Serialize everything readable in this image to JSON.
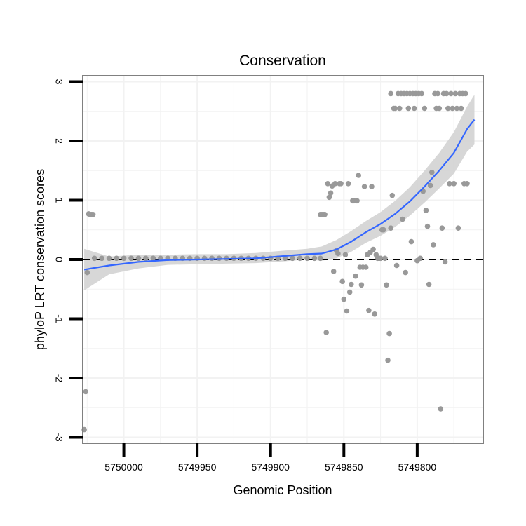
{
  "chart_data": {
    "type": "scatter",
    "title": "Conservation",
    "xlabel": "Genomic Position",
    "ylabel": "phyloP LRT conservation scores",
    "x_reversed": true,
    "xlim": [
      5750028,
      5749755
    ],
    "ylim": [
      -3.1,
      3.1
    ],
    "x_ticks": [
      5750000,
      5749950,
      5749900,
      5749850,
      5749800
    ],
    "x_tick_labels": [
      "5750000",
      "5749950",
      "5749900",
      "5749850",
      "5749800"
    ],
    "y_ticks": [
      -3,
      -2,
      -1,
      0,
      1,
      2,
      3
    ],
    "y_tick_labels": [
      "-3",
      "-2",
      "-1",
      "0",
      "1",
      "2",
      "3"
    ],
    "reference_line": {
      "y": 0,
      "style": "dashed",
      "color": "#000000"
    },
    "grid": true,
    "colors": {
      "points": "#999999",
      "smooth_line": "#3366FF",
      "confidence_band": "#D3D3D3",
      "grid": "#F2F2F2",
      "panel_border": "#808080",
      "axis_ticks": "#000000"
    },
    "series": [
      {
        "name": "phyloP scores",
        "points": [
          {
            "x": 5750027,
            "y": -2.87
          },
          {
            "x": 5750026,
            "y": -2.23
          },
          {
            "x": 5750025,
            "y": -0.22
          },
          {
            "x": 5750024,
            "y": 0.77
          },
          {
            "x": 5750023,
            "y": 0.76
          },
          {
            "x": 5750022,
            "y": 0.76
          },
          {
            "x": 5750021,
            "y": 0.76
          },
          {
            "x": 5750020,
            "y": 0.02
          },
          {
            "x": 5750015,
            "y": 0.02
          },
          {
            "x": 5750010,
            "y": 0.02
          },
          {
            "x": 5750005,
            "y": 0.02
          },
          {
            "x": 5750000,
            "y": 0.02
          },
          {
            "x": 5749995,
            "y": 0.02
          },
          {
            "x": 5749990,
            "y": 0.02
          },
          {
            "x": 5749985,
            "y": 0.02
          },
          {
            "x": 5749980,
            "y": 0.02
          },
          {
            "x": 5749975,
            "y": 0.02
          },
          {
            "x": 5749970,
            "y": 0.02
          },
          {
            "x": 5749965,
            "y": 0.02
          },
          {
            "x": 5749960,
            "y": 0.02
          },
          {
            "x": 5749955,
            "y": 0.02
          },
          {
            "x": 5749950,
            "y": 0.02
          },
          {
            "x": 5749945,
            "y": 0.02
          },
          {
            "x": 5749940,
            "y": 0.02
          },
          {
            "x": 5749935,
            "y": 0.02
          },
          {
            "x": 5749930,
            "y": 0.02
          },
          {
            "x": 5749925,
            "y": 0.02
          },
          {
            "x": 5749920,
            "y": 0.02
          },
          {
            "x": 5749915,
            "y": 0.02
          },
          {
            "x": 5749910,
            "y": 0.02
          },
          {
            "x": 5749905,
            "y": 0.02
          },
          {
            "x": 5749900,
            "y": 0.02
          },
          {
            "x": 5749895,
            "y": 0.02
          },
          {
            "x": 5749890,
            "y": 0.02
          },
          {
            "x": 5749885,
            "y": 0.02
          },
          {
            "x": 5749880,
            "y": 0.02
          },
          {
            "x": 5749875,
            "y": 0.02
          },
          {
            "x": 5749870,
            "y": 0.02
          },
          {
            "x": 5749866,
            "y": 0.02
          },
          {
            "x": 5749866,
            "y": 0.76
          },
          {
            "x": 5749865,
            "y": 0.76
          },
          {
            "x": 5749864,
            "y": 0.76
          },
          {
            "x": 5749863,
            "y": 0.76
          },
          {
            "x": 5749862,
            "y": -1.23
          },
          {
            "x": 5749861,
            "y": 1.28
          },
          {
            "x": 5749860,
            "y": 1.05
          },
          {
            "x": 5749859,
            "y": 1.12
          },
          {
            "x": 5749858,
            "y": 1.24
          },
          {
            "x": 5749857,
            "y": -0.2
          },
          {
            "x": 5749856,
            "y": 1.28
          },
          {
            "x": 5749855,
            "y": 0.15
          },
          {
            "x": 5749854,
            "y": 0.1
          },
          {
            "x": 5749853,
            "y": 1.28
          },
          {
            "x": 5749852,
            "y": 1.28
          },
          {
            "x": 5749851,
            "y": -0.37
          },
          {
            "x": 5749850,
            "y": -0.67
          },
          {
            "x": 5749849,
            "y": 0.08
          },
          {
            "x": 5749848,
            "y": -0.87
          },
          {
            "x": 5749847,
            "y": 1.28
          },
          {
            "x": 5749846,
            "y": -0.55
          },
          {
            "x": 5749845,
            "y": -0.42
          },
          {
            "x": 5749844,
            "y": 0.99
          },
          {
            "x": 5749843,
            "y": 0.99
          },
          {
            "x": 5749842,
            "y": -0.28
          },
          {
            "x": 5749841,
            "y": 0.99
          },
          {
            "x": 5749840,
            "y": 1.42
          },
          {
            "x": 5749839,
            "y": -0.13
          },
          {
            "x": 5749838,
            "y": -0.43
          },
          {
            "x": 5749837,
            "y": -0.13
          },
          {
            "x": 5749836,
            "y": 1.23
          },
          {
            "x": 5749835,
            "y": -0.13
          },
          {
            "x": 5749834,
            "y": 0.08
          },
          {
            "x": 5749833,
            "y": -0.86
          },
          {
            "x": 5749832,
            "y": 0.12
          },
          {
            "x": 5749831,
            "y": 1.23
          },
          {
            "x": 5749830,
            "y": 0.17
          },
          {
            "x": 5749829,
            "y": -0.92
          },
          {
            "x": 5749828,
            "y": 0.08
          },
          {
            "x": 5749827,
            "y": 0.02
          },
          {
            "x": 5749826,
            "y": 0.02
          },
          {
            "x": 5749825,
            "y": 0.02
          },
          {
            "x": 5749824,
            "y": 0.5
          },
          {
            "x": 5749823,
            "y": 0.5
          },
          {
            "x": 5749822,
            "y": 0.02
          },
          {
            "x": 5749821,
            "y": -0.43
          },
          {
            "x": 5749820,
            "y": -1.7
          },
          {
            "x": 5749819,
            "y": -1.25
          },
          {
            "x": 5749818,
            "y": 0.53
          },
          {
            "x": 5749818,
            "y": 2.8
          },
          {
            "x": 5749817,
            "y": 1.08
          },
          {
            "x": 5749816,
            "y": 2.55
          },
          {
            "x": 5749815,
            "y": 2.55
          },
          {
            "x": 5749814,
            "y": -0.1
          },
          {
            "x": 5749813,
            "y": 2.8
          },
          {
            "x": 5749812,
            "y": 2.55
          },
          {
            "x": 5749811,
            "y": 2.8
          },
          {
            "x": 5749810,
            "y": 0.68
          },
          {
            "x": 5749809,
            "y": 2.8
          },
          {
            "x": 5749808,
            "y": -0.22
          },
          {
            "x": 5749807,
            "y": 2.8
          },
          {
            "x": 5749806,
            "y": 2.55
          },
          {
            "x": 5749805,
            "y": 2.8
          },
          {
            "x": 5749804,
            "y": 0.3
          },
          {
            "x": 5749803,
            "y": 2.8
          },
          {
            "x": 5749802,
            "y": 2.55
          },
          {
            "x": 5749801,
            "y": 2.8
          },
          {
            "x": 5749800,
            "y": -0.02
          },
          {
            "x": 5749799,
            "y": 2.8
          },
          {
            "x": 5749798,
            "y": 0.02
          },
          {
            "x": 5749797,
            "y": 2.8
          },
          {
            "x": 5749796,
            "y": 1.15
          },
          {
            "x": 5749795,
            "y": 2.55
          },
          {
            "x": 5749794,
            "y": 0.83
          },
          {
            "x": 5749793,
            "y": 0.56
          },
          {
            "x": 5749792,
            "y": -0.42
          },
          {
            "x": 5749791,
            "y": 1.25
          },
          {
            "x": 5749790,
            "y": 1.47
          },
          {
            "x": 5749789,
            "y": 0.25
          },
          {
            "x": 5749788,
            "y": 2.8
          },
          {
            "x": 5749787,
            "y": 2.55
          },
          {
            "x": 5749786,
            "y": 2.8
          },
          {
            "x": 5749785,
            "y": 2.55
          },
          {
            "x": 5749784,
            "y": -2.52
          },
          {
            "x": 5749783,
            "y": 0.53
          },
          {
            "x": 5749782,
            "y": 2.8
          },
          {
            "x": 5749781,
            "y": -0.04
          },
          {
            "x": 5749780,
            "y": 2.8
          },
          {
            "x": 5749779,
            "y": 2.55
          },
          {
            "x": 5749778,
            "y": 1.28
          },
          {
            "x": 5749777,
            "y": 2.8
          },
          {
            "x": 5749776,
            "y": 2.55
          },
          {
            "x": 5749775,
            "y": 1.28
          },
          {
            "x": 5749774,
            "y": 2.8
          },
          {
            "x": 5749773,
            "y": 2.55
          },
          {
            "x": 5749772,
            "y": 0.53
          },
          {
            "x": 5749771,
            "y": 2.8
          },
          {
            "x": 5749770,
            "y": 2.55
          },
          {
            "x": 5749769,
            "y": 2.8
          },
          {
            "x": 5749768,
            "y": 1.28
          },
          {
            "x": 5749767,
            "y": 2.8
          },
          {
            "x": 5749766,
            "y": 1.28
          }
        ]
      },
      {
        "name": "loess fit",
        "line": [
          {
            "x": 5750027,
            "y": -0.17
          },
          {
            "x": 5750010,
            "y": -0.1
          },
          {
            "x": 5749990,
            "y": -0.04
          },
          {
            "x": 5749970,
            "y": -0.01
          },
          {
            "x": 5749950,
            "y": 0.0
          },
          {
            "x": 5749930,
            "y": 0.01
          },
          {
            "x": 5749910,
            "y": 0.02
          },
          {
            "x": 5749890,
            "y": 0.06
          },
          {
            "x": 5749875,
            "y": 0.09
          },
          {
            "x": 5749865,
            "y": 0.1
          },
          {
            "x": 5749855,
            "y": 0.17
          },
          {
            "x": 5749845,
            "y": 0.3
          },
          {
            "x": 5749835,
            "y": 0.46
          },
          {
            "x": 5749825,
            "y": 0.6
          },
          {
            "x": 5749815,
            "y": 0.77
          },
          {
            "x": 5749805,
            "y": 0.98
          },
          {
            "x": 5749795,
            "y": 1.23
          },
          {
            "x": 5749785,
            "y": 1.5
          },
          {
            "x": 5749775,
            "y": 1.8
          },
          {
            "x": 5749766,
            "y": 2.2
          },
          {
            "x": 5749761,
            "y": 2.36
          }
        ],
        "band_upper": [
          {
            "x": 5750027,
            "y": 0.18
          },
          {
            "x": 5750010,
            "y": 0.05
          },
          {
            "x": 5749990,
            "y": 0.08
          },
          {
            "x": 5749970,
            "y": 0.08
          },
          {
            "x": 5749950,
            "y": 0.09
          },
          {
            "x": 5749930,
            "y": 0.09
          },
          {
            "x": 5749910,
            "y": 0.11
          },
          {
            "x": 5749890,
            "y": 0.15
          },
          {
            "x": 5749875,
            "y": 0.18
          },
          {
            "x": 5749865,
            "y": 0.22
          },
          {
            "x": 5749855,
            "y": 0.33
          },
          {
            "x": 5749845,
            "y": 0.48
          },
          {
            "x": 5749835,
            "y": 0.65
          },
          {
            "x": 5749825,
            "y": 0.8
          },
          {
            "x": 5749815,
            "y": 0.99
          },
          {
            "x": 5749805,
            "y": 1.22
          },
          {
            "x": 5749795,
            "y": 1.5
          },
          {
            "x": 5749785,
            "y": 1.8
          },
          {
            "x": 5749775,
            "y": 2.15
          },
          {
            "x": 5749766,
            "y": 2.58
          },
          {
            "x": 5749761,
            "y": 2.78
          }
        ],
        "band_lower": [
          {
            "x": 5750027,
            "y": -0.52
          },
          {
            "x": 5750010,
            "y": -0.25
          },
          {
            "x": 5749990,
            "y": -0.15
          },
          {
            "x": 5749970,
            "y": -0.09
          },
          {
            "x": 5749950,
            "y": -0.08
          },
          {
            "x": 5749930,
            "y": -0.07
          },
          {
            "x": 5749910,
            "y": -0.06
          },
          {
            "x": 5749890,
            "y": -0.03
          },
          {
            "x": 5749875,
            "y": 0.0
          },
          {
            "x": 5749865,
            "y": -0.02
          },
          {
            "x": 5749855,
            "y": 0.02
          },
          {
            "x": 5749845,
            "y": 0.13
          },
          {
            "x": 5749835,
            "y": 0.28
          },
          {
            "x": 5749825,
            "y": 0.4
          },
          {
            "x": 5749815,
            "y": 0.55
          },
          {
            "x": 5749805,
            "y": 0.74
          },
          {
            "x": 5749795,
            "y": 0.96
          },
          {
            "x": 5749785,
            "y": 1.2
          },
          {
            "x": 5749775,
            "y": 1.45
          },
          {
            "x": 5749766,
            "y": 1.82
          },
          {
            "x": 5749761,
            "y": 1.94
          }
        ]
      }
    ]
  }
}
